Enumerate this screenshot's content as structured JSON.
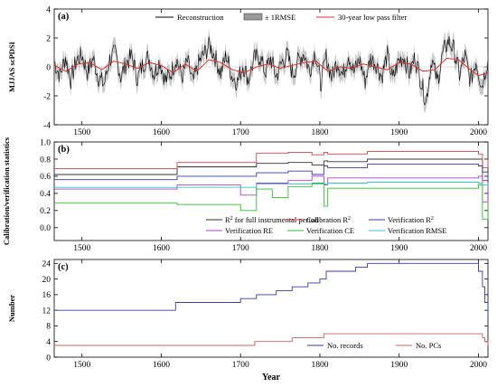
{
  "chart_data": [
    {
      "type": "line",
      "panel": "(a)",
      "ylabel": "MJJAS scPDSI",
      "xlabel": "",
      "xlim": [
        1465,
        2012
      ],
      "ylim": [
        -4,
        4
      ],
      "xticks": [
        1500,
        1600,
        1700,
        1800,
        1900,
        2000
      ],
      "yticks": [
        -4,
        -2,
        0,
        2,
        4
      ],
      "legend_placement": "top",
      "series": [
        {
          "name": "Reconstruction",
          "color": "#000000",
          "style": "line"
        },
        {
          "name": "± 1RMSE",
          "color": "#9a9a9a",
          "style": "band"
        },
        {
          "name": "30-year low pass filter",
          "color": "#e03030",
          "style": "line"
        }
      ],
      "lowpass": {
        "x": [
          1465,
          1480,
          1495,
          1510,
          1525,
          1540,
          1555,
          1570,
          1585,
          1600,
          1615,
          1630,
          1645,
          1660,
          1675,
          1690,
          1705,
          1720,
          1735,
          1750,
          1765,
          1780,
          1795,
          1810,
          1825,
          1840,
          1855,
          1870,
          1885,
          1900,
          1915,
          1930,
          1945,
          1960,
          1975,
          1990,
          2000,
          2012
        ],
        "y": [
          0.1,
          -0.3,
          0.2,
          0.3,
          -0.2,
          0.4,
          0.2,
          -0.1,
          0.3,
          0.1,
          -0.4,
          0.2,
          -0.3,
          0.5,
          0.3,
          -0.2,
          -0.4,
          0.0,
          0.2,
          -0.1,
          0.1,
          0.3,
          0.4,
          -0.3,
          0.0,
          -0.1,
          0.2,
          0.0,
          -0.2,
          0.3,
          0.2,
          -0.3,
          -0.2,
          0.6,
          0.5,
          -0.2,
          -0.6,
          -0.4
        ]
      },
      "reconstruction": {
        "x": [
          1465,
          1472,
          1479,
          1486,
          1493,
          1500,
          1507,
          1514,
          1521,
          1528,
          1535,
          1542,
          1549,
          1556,
          1563,
          1570,
          1577,
          1584,
          1591,
          1598,
          1605,
          1612,
          1619,
          1626,
          1633,
          1640,
          1647,
          1654,
          1661,
          1668,
          1675,
          1682,
          1689,
          1696,
          1703,
          1710,
          1717,
          1724,
          1731,
          1738,
          1745,
          1752,
          1759,
          1766,
          1773,
          1780,
          1787,
          1794,
          1801,
          1808,
          1815,
          1822,
          1829,
          1836,
          1843,
          1850,
          1857,
          1864,
          1871,
          1878,
          1885,
          1892,
          1899,
          1906,
          1913,
          1920,
          1927,
          1934,
          1941,
          1948,
          1955,
          1962,
          1969,
          1976,
          1983,
          1990,
          1997,
          2004,
          2011
        ],
        "y": [
          0.5,
          -0.8,
          0.9,
          -1.2,
          0.6,
          1.1,
          -0.5,
          0.8,
          -1.0,
          -1.6,
          0.7,
          1.3,
          -0.9,
          0.4,
          1.0,
          -1.1,
          0.3,
          0.9,
          -0.7,
          0.6,
          -1.3,
          -0.6,
          0.8,
          -1.0,
          0.5,
          -1.5,
          0.3,
          1.2,
          2.0,
          0.9,
          -0.6,
          1.1,
          -0.8,
          -1.4,
          0.2,
          -1.2,
          0.7,
          1.0,
          -0.5,
          0.8,
          -0.9,
          0.4,
          1.1,
          -0.7,
          0.6,
          1.3,
          -0.4,
          1.5,
          -1.6,
          0.9,
          -1.0,
          0.6,
          -0.8,
          1.2,
          -0.5,
          0.7,
          -1.3,
          0.8,
          0.3,
          -0.9,
          1.1,
          -1.2,
          0.5,
          1.0,
          -0.6,
          0.9,
          -1.1,
          -3.2,
          0.8,
          -1.4,
          1.2,
          2.4,
          1.6,
          -0.7,
          1.0,
          -1.3,
          0.6,
          -1.8,
          0.4
        ]
      }
    },
    {
      "type": "line",
      "panel": "(b)",
      "ylabel": "Calibration/verification statistics",
      "xlabel": "",
      "xlim": [
        1465,
        2012
      ],
      "ylim": [
        -0.15,
        1.0
      ],
      "xticks": [
        1500,
        1600,
        1700,
        1800,
        1900,
        2000
      ],
      "yticks": [
        0.0,
        0.2,
        0.4,
        0.6,
        0.8,
        1.0
      ],
      "yticklabels": [
        "0.0",
        "0.2",
        "0.4",
        "0.6",
        "0.8",
        "1.0"
      ],
      "legend_placement": "bottom-right",
      "series": [
        {
          "name": "R",
          "name_sup": "2",
          "name_tail": " for full instrumental period",
          "color": "#333333",
          "x": [
            1465,
            1615,
            1620,
            1700,
            1720,
            1760,
            1790,
            1805,
            1810,
            1860,
            1900,
            2000,
            2005,
            2012
          ],
          "y": [
            0.62,
            0.62,
            0.71,
            0.71,
            0.75,
            0.76,
            0.73,
            0.78,
            0.77,
            0.8,
            0.8,
            0.8,
            0.65,
            0.7
          ]
        },
        {
          "name": "Calibration R",
          "name_sup": "2",
          "name_tail": "",
          "color": "#d04848",
          "x": [
            1465,
            1615,
            1620,
            1700,
            1720,
            1760,
            1790,
            1805,
            1810,
            1860,
            1900,
            2000,
            2005,
            2012
          ],
          "y": [
            0.69,
            0.69,
            0.76,
            0.76,
            0.87,
            0.88,
            0.85,
            0.88,
            0.86,
            0.89,
            0.89,
            0.86,
            0.7,
            0.8
          ]
        },
        {
          "name": "Verification R",
          "name_sup": "2",
          "name_tail": "",
          "color": "#3a3aa8",
          "x": [
            1465,
            1615,
            1620,
            1700,
            1720,
            1760,
            1790,
            1805,
            1810,
            1860,
            1900,
            2000,
            2005,
            2012
          ],
          "y": [
            0.56,
            0.56,
            0.6,
            0.6,
            0.64,
            0.66,
            0.62,
            0.72,
            0.7,
            0.74,
            0.74,
            0.72,
            0.55,
            0.65
          ]
        },
        {
          "name": "Verification RE",
          "name_sup": "",
          "name_tail": "",
          "color": "#b040c8",
          "x": [
            1465,
            1615,
            1620,
            1700,
            1720,
            1760,
            1790,
            1805,
            1810,
            1860,
            1900,
            2000,
            2005,
            2012
          ],
          "y": [
            0.45,
            0.45,
            0.5,
            0.38,
            0.52,
            0.55,
            0.6,
            0.5,
            0.58,
            0.58,
            0.58,
            0.6,
            0.3,
            0.5
          ]
        },
        {
          "name": "Verification CE",
          "name_sup": "",
          "name_tail": "",
          "color": "#30c030",
          "x": [
            1465,
            1615,
            1620,
            1700,
            1720,
            1740,
            1760,
            1790,
            1805,
            1810,
            1860,
            1900,
            2000,
            2005,
            2012
          ],
          "y": [
            0.29,
            0.29,
            0.27,
            0.2,
            0.45,
            0.35,
            0.48,
            0.52,
            0.25,
            0.46,
            0.46,
            0.46,
            0.5,
            0.1,
            0.3
          ]
        },
        {
          "name": "Verification RMSE",
          "name_sup": "",
          "name_tail": "",
          "color": "#30c8c8",
          "x": [
            1465,
            1615,
            1620,
            1700,
            1720,
            1760,
            1790,
            1805,
            1810,
            1860,
            1900,
            2000,
            2005,
            2012
          ],
          "y": [
            0.47,
            0.47,
            0.47,
            0.47,
            0.51,
            0.51,
            0.51,
            0.51,
            0.52,
            0.53,
            0.53,
            0.52,
            0.5,
            0.52
          ]
        }
      ]
    },
    {
      "type": "line",
      "panel": "(c)",
      "ylabel": "Number",
      "xlabel": "Year",
      "xlim": [
        1465,
        2012
      ],
      "ylim": [
        0,
        25
      ],
      "xticks": [
        1500,
        1600,
        1700,
        1800,
        1900,
        2000
      ],
      "yticks": [
        0,
        4,
        8,
        12,
        16,
        20,
        24
      ],
      "legend_placement": "bottom-right",
      "series": [
        {
          "name": "No. records",
          "color": "#3a3aa8",
          "x": [
            1465,
            1613,
            1618,
            1695,
            1700,
            1712,
            1720,
            1735,
            1745,
            1755,
            1765,
            1775,
            1785,
            1795,
            1800,
            1808,
            1830,
            1845,
            1855,
            1860,
            1995,
            2000,
            2005,
            2008,
            2012
          ],
          "y": [
            12,
            12,
            14,
            14,
            15,
            15,
            16,
            16,
            17,
            17,
            18,
            18,
            19,
            19,
            20,
            22,
            22,
            23,
            23,
            24,
            24,
            22,
            18,
            14,
            10
          ]
        },
        {
          "name": "No. PCs",
          "color": "#d06060",
          "x": [
            1465,
            1713,
            1718,
            1760,
            1765,
            1800,
            1805,
            1995,
            2000,
            2005,
            2008,
            2012
          ],
          "y": [
            3,
            3,
            4,
            4,
            5,
            5,
            6,
            6,
            6,
            5,
            4,
            3
          ]
        }
      ]
    }
  ]
}
